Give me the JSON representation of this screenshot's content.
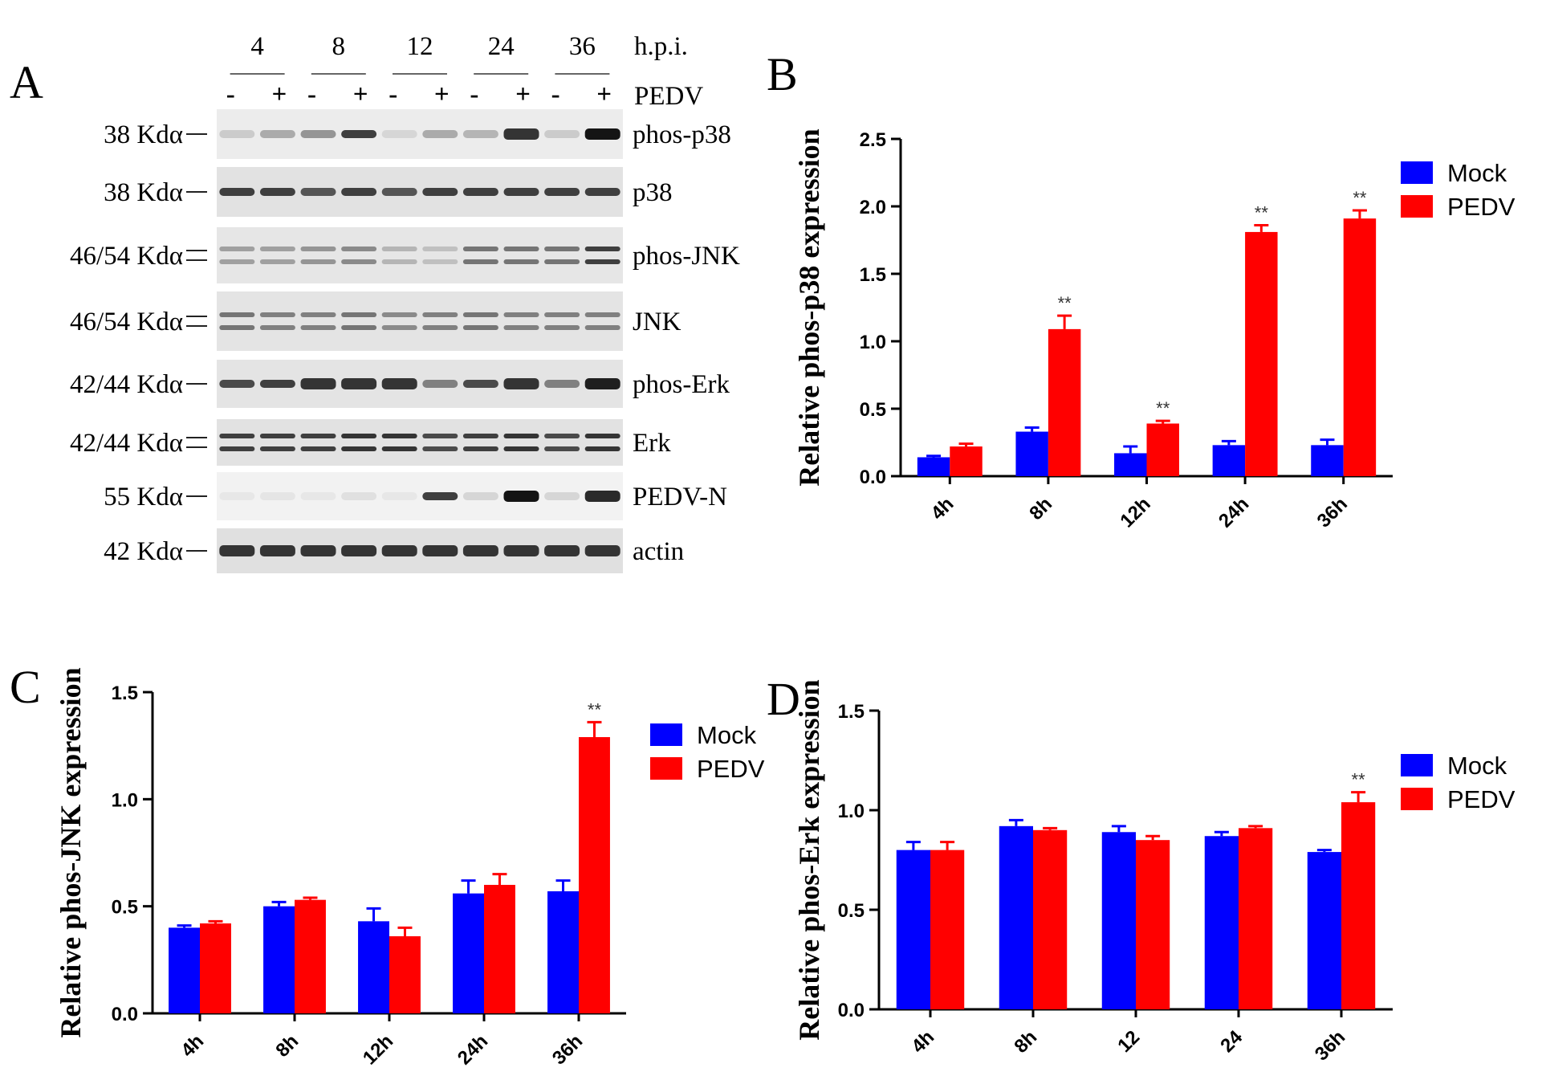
{
  "panels": {
    "a": "A",
    "b": "B",
    "c": "C",
    "d": "D"
  },
  "blot": {
    "timepoints": [
      "4",
      "8",
      "12",
      "24",
      "36"
    ],
    "time_unit": "h.p.i.",
    "treatment_label": "PEDV",
    "signs": [
      "-",
      "+",
      "-",
      "+",
      "-",
      "+",
      "-",
      "+",
      "-",
      "+"
    ],
    "rows": [
      {
        "mw": "38 Kdα",
        "name": "phos-p38",
        "bands": [
          0.15,
          0.3,
          0.4,
          0.8,
          0.1,
          0.3,
          0.25,
          0.85,
          0.15,
          1.0
        ],
        "double": false,
        "bg": "#ececec"
      },
      {
        "mw": "38 Kdα",
        "name": "p38",
        "bands": [
          0.8,
          0.8,
          0.7,
          0.8,
          0.7,
          0.8,
          0.8,
          0.8,
          0.8,
          0.8
        ],
        "double": false,
        "bg": "#e2e2e2"
      },
      {
        "mw": "46/54 Kdα",
        "name": "phos-JNK",
        "bands": [
          0.35,
          0.35,
          0.4,
          0.45,
          0.25,
          0.2,
          0.55,
          0.55,
          0.55,
          0.8
        ],
        "double": true,
        "bg": "#e6e6e6"
      },
      {
        "mw": "46/54 Kdα",
        "name": "JNK",
        "bands": [
          0.55,
          0.5,
          0.5,
          0.55,
          0.45,
          0.5,
          0.55,
          0.5,
          0.5,
          0.5
        ],
        "double": true,
        "bg": "#e4e4e4"
      },
      {
        "mw": "42/44 Kdα",
        "name": "phos-Erk",
        "bands": [
          0.75,
          0.8,
          0.85,
          0.85,
          0.85,
          0.5,
          0.75,
          0.85,
          0.5,
          0.95
        ],
        "double": false,
        "bg": "#e4e4e4"
      },
      {
        "mw": "42/44 Kdα",
        "name": "Erk",
        "bands": [
          0.8,
          0.8,
          0.8,
          0.85,
          0.85,
          0.75,
          0.8,
          0.85,
          0.75,
          0.85
        ],
        "double": true,
        "bg": "#e2e2e2"
      },
      {
        "mw": "55 Kdα",
        "name": "PEDV-N",
        "bands": [
          0.02,
          0.03,
          0.02,
          0.05,
          0.02,
          0.8,
          0.1,
          1.0,
          0.1,
          0.9
        ],
        "double": false,
        "bg": "#f2f2f2"
      },
      {
        "mw": "42 Kdα",
        "name": "actin",
        "bands": [
          0.85,
          0.85,
          0.85,
          0.85,
          0.85,
          0.85,
          0.85,
          0.85,
          0.85,
          0.85
        ],
        "double": false,
        "bg": "#e0e0e0"
      }
    ]
  },
  "colors": {
    "mock": "#0000ff",
    "pedv": "#ff0000",
    "axis": "#000000"
  },
  "chart_data": [
    {
      "panel": "B",
      "type": "bar",
      "ylabel": "Relative phos-p38 expression",
      "xlabel": "",
      "categories": [
        "4h",
        "8h",
        "12h",
        "24h",
        "36h"
      ],
      "ylim": [
        0,
        2.5
      ],
      "yticks": [
        "0.0",
        "0.5",
        "1.0",
        "1.5",
        "2.0",
        "2.5"
      ],
      "series": [
        {
          "name": "Mock",
          "values": [
            0.14,
            0.33,
            0.17,
            0.23,
            0.23
          ],
          "errors": [
            0.01,
            0.03,
            0.05,
            0.03,
            0.04
          ]
        },
        {
          "name": "PEDV",
          "values": [
            0.22,
            1.09,
            0.39,
            1.81,
            1.91
          ],
          "errors": [
            0.02,
            0.1,
            0.02,
            0.05,
            0.06
          ]
        }
      ],
      "annotations": [
        {
          "category": "8h",
          "text": "**"
        },
        {
          "category": "12h",
          "text": "**"
        },
        {
          "category": "24h",
          "text": "**"
        },
        {
          "category": "36h",
          "text": "**"
        }
      ],
      "legend": "top-right"
    },
    {
      "panel": "C",
      "type": "bar",
      "ylabel": "Relative phos-JNK expression",
      "xlabel": "",
      "categories": [
        "4h",
        "8h",
        "12h",
        "24h",
        "36h"
      ],
      "ylim": [
        0,
        1.5
      ],
      "yticks": [
        "0.0",
        "0.5",
        "1.0",
        "1.5"
      ],
      "series": [
        {
          "name": "Mock",
          "values": [
            0.4,
            0.5,
            0.43,
            0.56,
            0.57
          ],
          "errors": [
            0.01,
            0.02,
            0.06,
            0.06,
            0.05
          ]
        },
        {
          "name": "PEDV",
          "values": [
            0.42,
            0.53,
            0.36,
            0.6,
            1.29
          ],
          "errors": [
            0.01,
            0.01,
            0.04,
            0.05,
            0.07
          ]
        }
      ],
      "annotations": [
        {
          "category": "36h",
          "text": "**"
        }
      ],
      "legend": "top-right"
    },
    {
      "panel": "D",
      "type": "bar",
      "ylabel": "Relative phos-Erk expression",
      "xlabel": "",
      "categories": [
        "4h",
        "8h",
        "12",
        "24",
        "36h"
      ],
      "ylim": [
        0,
        1.5
      ],
      "yticks": [
        "0.0",
        "0.5",
        "1.0",
        "1.5"
      ],
      "series": [
        {
          "name": "Mock",
          "values": [
            0.8,
            0.92,
            0.89,
            0.87,
            0.79
          ],
          "errors": [
            0.04,
            0.03,
            0.03,
            0.02,
            0.01
          ]
        },
        {
          "name": "PEDV",
          "values": [
            0.8,
            0.9,
            0.85,
            0.91,
            1.04
          ],
          "errors": [
            0.04,
            0.01,
            0.02,
            0.01,
            0.05
          ]
        }
      ],
      "annotations": [
        {
          "category": "36h",
          "text": "**"
        }
      ],
      "legend": "top-right"
    }
  ]
}
